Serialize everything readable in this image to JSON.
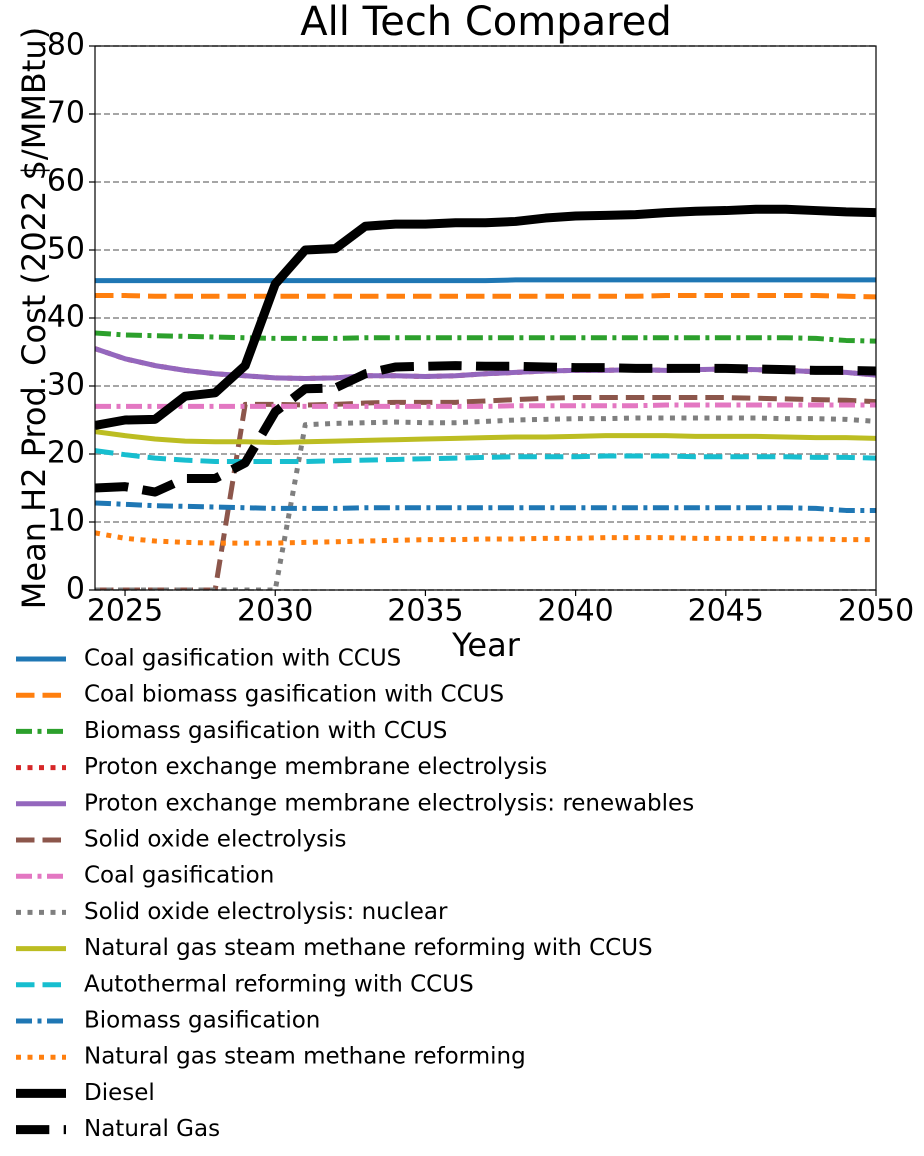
{
  "chart_data": {
    "type": "line",
    "title": "All Tech Compared",
    "xlabel": "Year",
    "ylabel": "Mean H2 Prod. Cost (2022 $/MMBtu)",
    "x": [
      2024,
      2025,
      2026,
      2027,
      2028,
      2029,
      2030,
      2031,
      2032,
      2033,
      2034,
      2035,
      2036,
      2037,
      2038,
      2039,
      2040,
      2041,
      2042,
      2043,
      2044,
      2045,
      2046,
      2047,
      2048,
      2049,
      2050
    ],
    "xlim": [
      2024,
      2050
    ],
    "xticks": [
      2025,
      2030,
      2035,
      2040,
      2045,
      2050
    ],
    "ylim": [
      0,
      80
    ],
    "yticks": [
      0,
      10,
      20,
      30,
      40,
      50,
      60,
      70,
      80
    ],
    "grid": true,
    "legend": "below",
    "series": [
      {
        "name": "Coal gasification with CCUS",
        "color": "#1f77b4",
        "linestyle": "solid",
        "linewidth": 5,
        "values": [
          45.5,
          45.5,
          45.5,
          45.5,
          45.5,
          45.5,
          45.5,
          45.5,
          45.5,
          45.5,
          45.5,
          45.5,
          45.5,
          45.5,
          45.6,
          45.6,
          45.6,
          45.6,
          45.6,
          45.6,
          45.6,
          45.6,
          45.6,
          45.6,
          45.6,
          45.6,
          45.6
        ]
      },
      {
        "name": "Coal biomass gasification with CCUS",
        "color": "#ff7f0e",
        "linestyle": "dashed",
        "linewidth": 5,
        "values": [
          43.3,
          43.3,
          43.2,
          43.2,
          43.2,
          43.2,
          43.2,
          43.2,
          43.2,
          43.2,
          43.2,
          43.2,
          43.2,
          43.2,
          43.2,
          43.2,
          43.2,
          43.2,
          43.2,
          43.3,
          43.3,
          43.3,
          43.3,
          43.3,
          43.3,
          43.2,
          43.1
        ]
      },
      {
        "name": "Biomass gasification with CCUS",
        "color": "#2ca02c",
        "linestyle": "dashdot",
        "linewidth": 5,
        "values": [
          37.8,
          37.5,
          37.4,
          37.3,
          37.2,
          37.1,
          37.0,
          37.0,
          37.0,
          37.1,
          37.1,
          37.1,
          37.1,
          37.1,
          37.1,
          37.1,
          37.1,
          37.1,
          37.1,
          37.1,
          37.1,
          37.1,
          37.1,
          37.1,
          37.0,
          36.7,
          36.6
        ]
      },
      {
        "name": "Proton exchange membrane electrolysis",
        "color": "#d62728",
        "linestyle": "dotted",
        "linewidth": 5,
        "values": [
          35.5,
          34.0,
          33.0,
          32.3,
          31.8,
          31.5,
          31.2,
          31.1,
          31.2,
          31.5,
          31.5,
          31.4,
          31.5,
          31.8,
          32.0,
          32.2,
          32.3,
          32.3,
          32.4,
          32.3,
          32.4,
          32.5,
          32.4,
          32.3,
          32.1,
          32.0,
          31.6
        ]
      },
      {
        "name": "Proton exchange membrane electrolysis: renewables",
        "color": "#9467bd",
        "linestyle": "solid",
        "linewidth": 5,
        "values": [
          35.5,
          34.0,
          33.0,
          32.3,
          31.8,
          31.5,
          31.2,
          31.1,
          31.2,
          31.5,
          31.5,
          31.4,
          31.5,
          31.8,
          32.0,
          32.2,
          32.3,
          32.3,
          32.4,
          32.3,
          32.4,
          32.5,
          32.4,
          32.3,
          32.1,
          32.0,
          31.6
        ]
      },
      {
        "name": "Solid oxide electrolysis",
        "color": "#8c564b",
        "linestyle": "dashed",
        "linewidth": 5,
        "values": [
          0,
          0,
          0,
          0,
          0,
          27.3,
          27.3,
          27.2,
          27.3,
          27.5,
          27.6,
          27.6,
          27.6,
          27.8,
          28.0,
          28.2,
          28.3,
          28.3,
          28.3,
          28.3,
          28.3,
          28.3,
          28.2,
          28.1,
          28.0,
          27.9,
          27.7
        ]
      },
      {
        "name": "Coal gasification",
        "color": "#e377c2",
        "linestyle": "dashdot",
        "linewidth": 5,
        "values": [
          27.0,
          27.0,
          27.0,
          27.0,
          27.0,
          27.0,
          27.0,
          27.0,
          27.0,
          27.0,
          27.0,
          27.0,
          27.0,
          27.0,
          27.1,
          27.1,
          27.1,
          27.1,
          27.1,
          27.2,
          27.2,
          27.2,
          27.2,
          27.2,
          27.2,
          27.2,
          27.2
        ]
      },
      {
        "name": "Solid oxide electrolysis: nuclear",
        "color": "#7f7f7f",
        "linestyle": "dotted",
        "linewidth": 5,
        "values": [
          0,
          0,
          0,
          0,
          0,
          0,
          0,
          24.3,
          24.5,
          24.6,
          24.7,
          24.6,
          24.6,
          24.8,
          25.0,
          25.1,
          25.2,
          25.2,
          25.3,
          25.3,
          25.3,
          25.3,
          25.3,
          25.2,
          25.2,
          25.1,
          24.8
        ]
      },
      {
        "name": "Natural gas steam methane reforming with CCUS",
        "color": "#bcbd22",
        "linestyle": "solid",
        "linewidth": 5,
        "values": [
          23.3,
          22.7,
          22.2,
          21.9,
          21.8,
          21.8,
          21.7,
          21.8,
          21.9,
          22.0,
          22.1,
          22.2,
          22.3,
          22.4,
          22.5,
          22.5,
          22.6,
          22.7,
          22.7,
          22.7,
          22.6,
          22.6,
          22.6,
          22.5,
          22.4,
          22.4,
          22.3
        ]
      },
      {
        "name": "Autothermal reforming with CCUS",
        "color": "#17becf",
        "linestyle": "dashed",
        "linewidth": 5,
        "values": [
          20.5,
          19.9,
          19.4,
          19.1,
          18.9,
          18.9,
          18.9,
          18.9,
          19.0,
          19.1,
          19.2,
          19.3,
          19.4,
          19.5,
          19.6,
          19.6,
          19.6,
          19.7,
          19.7,
          19.7,
          19.6,
          19.6,
          19.6,
          19.6,
          19.5,
          19.5,
          19.4
        ]
      },
      {
        "name": "Biomass gasification",
        "color": "#1f77b4",
        "linestyle": "dashdot",
        "linewidth": 5,
        "values": [
          12.8,
          12.6,
          12.4,
          12.3,
          12.2,
          12.1,
          12.0,
          12.0,
          12.0,
          12.1,
          12.1,
          12.1,
          12.1,
          12.1,
          12.1,
          12.1,
          12.1,
          12.1,
          12.1,
          12.1,
          12.1,
          12.1,
          12.1,
          12.1,
          12.0,
          11.7,
          11.7
        ]
      },
      {
        "name": "Natural gas steam methane reforming",
        "color": "#ff7f0e",
        "linestyle": "dotted",
        "linewidth": 5,
        "values": [
          8.4,
          7.6,
          7.2,
          7.0,
          6.9,
          6.9,
          6.9,
          7.0,
          7.1,
          7.2,
          7.3,
          7.4,
          7.4,
          7.5,
          7.5,
          7.6,
          7.6,
          7.7,
          7.7,
          7.7,
          7.6,
          7.6,
          7.6,
          7.5,
          7.5,
          7.4,
          7.4
        ]
      },
      {
        "name": "Diesel",
        "color": "#000000",
        "linestyle": "solid",
        "linewidth": 9,
        "values": [
          24.2,
          25.0,
          25.1,
          28.5,
          29.0,
          33.0,
          45.0,
          50.0,
          50.2,
          53.5,
          53.8,
          53.8,
          54.0,
          54.0,
          54.2,
          54.7,
          55.0,
          55.1,
          55.2,
          55.5,
          55.7,
          55.8,
          56.0,
          56.0,
          55.8,
          55.6,
          55.5
        ]
      },
      {
        "name": "Natural Gas",
        "color": "#000000",
        "linestyle": "dashed",
        "linewidth": 9,
        "values": [
          15.0,
          15.2,
          14.4,
          16.4,
          16.4,
          18.7,
          26.2,
          29.6,
          29.7,
          31.8,
          32.8,
          32.9,
          33.0,
          32.9,
          32.9,
          32.8,
          32.7,
          32.7,
          32.6,
          32.6,
          32.6,
          32.6,
          32.5,
          32.4,
          32.3,
          32.3,
          32.2
        ]
      }
    ]
  }
}
